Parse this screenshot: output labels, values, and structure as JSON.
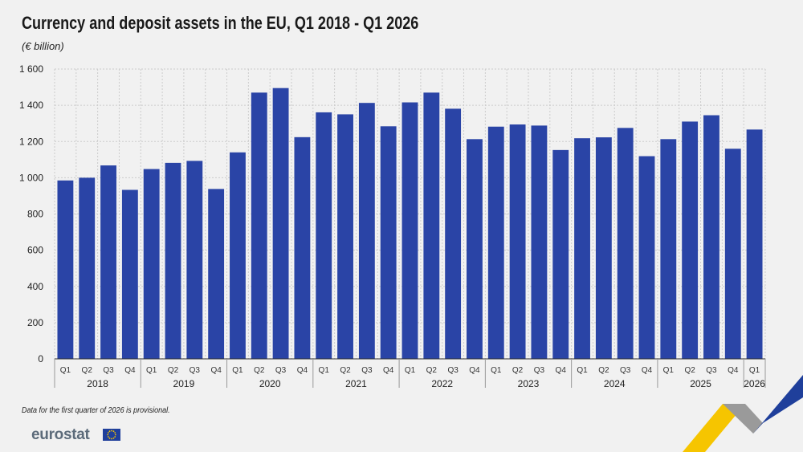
{
  "title": "Currency and deposit assets in the EU, Q1 2018 - Q1 2026",
  "subtitle": "(€ billion)",
  "footnote": "Data for the first quarter of 2026 is provisional.",
  "logo_text": "eurostat",
  "colors": {
    "bar": "#2a44a6",
    "grid": "#cccccc",
    "background": "#f1f1f1",
    "accent_yellow": "#f6c500",
    "accent_blue": "#1f3f9b"
  },
  "chart_data": {
    "type": "bar",
    "title": "Currency and deposit assets in the EU, Q1 2018 - Q1 2026",
    "ylabel": "(€ billion)",
    "ylim": [
      0,
      1600
    ],
    "yticks": [
      0,
      200,
      400,
      600,
      800,
      1000,
      1200,
      1400,
      1600
    ],
    "ytick_labels": [
      "0",
      "200",
      "400",
      "600",
      "800",
      "1 000",
      "1 200",
      "1 400",
      "1 600"
    ],
    "grid": true,
    "categories": [
      "Q1",
      "Q2",
      "Q3",
      "Q4",
      "Q1",
      "Q2",
      "Q3",
      "Q4",
      "Q1",
      "Q2",
      "Q3",
      "Q4",
      "Q1",
      "Q2",
      "Q3",
      "Q4",
      "Q1",
      "Q2",
      "Q3",
      "Q4",
      "Q1",
      "Q2",
      "Q3",
      "Q4",
      "Q1",
      "Q2",
      "Q3",
      "Q4",
      "Q1",
      "Q2",
      "Q3",
      "Q4",
      "Q1"
    ],
    "years": [
      {
        "label": "2018",
        "count": 4
      },
      {
        "label": "2019",
        "count": 4
      },
      {
        "label": "2020",
        "count": 4
      },
      {
        "label": "2021",
        "count": 4
      },
      {
        "label": "2022",
        "count": 4
      },
      {
        "label": "2023",
        "count": 4
      },
      {
        "label": "2024",
        "count": 4
      },
      {
        "label": "2025",
        "count": 4
      },
      {
        "label": "2026",
        "count": 1
      }
    ],
    "values": [
      985,
      1000,
      1068,
      933,
      1048,
      1082,
      1093,
      938,
      1140,
      1470,
      1495,
      1224,
      1361,
      1350,
      1413,
      1284,
      1416,
      1470,
      1381,
      1213,
      1282,
      1294,
      1288,
      1153,
      1218,
      1223,
      1275,
      1119,
      1213,
      1310,
      1345,
      1160,
      1266
    ]
  }
}
